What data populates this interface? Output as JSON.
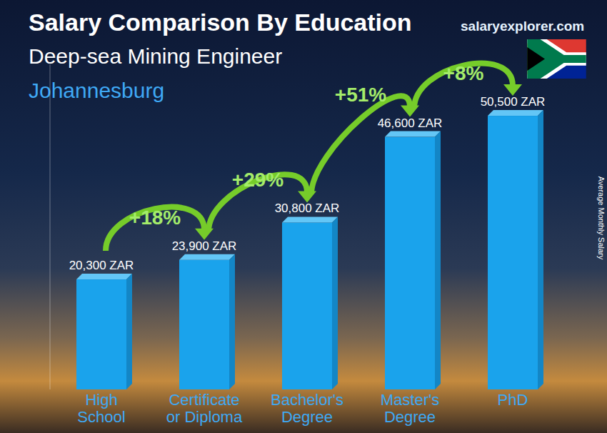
{
  "chart_data": {
    "type": "bar",
    "title": "Salary Comparison By Education",
    "subtitle": "Deep-sea Mining Engineer",
    "location": "Johannesburg",
    "source": "salaryexplorer.com",
    "y_label": "Average Monthly Salary",
    "categories": [
      "High School",
      "Certificate or Diploma",
      "Bachelor's Degree",
      "Master's Degree",
      "PhD"
    ],
    "values": [
      20300,
      23900,
      30800,
      46600,
      50500
    ],
    "value_labels": [
      "20,300 ZAR",
      "23,900 ZAR",
      "30,800 ZAR",
      "46,600 ZAR",
      "50,500 ZAR"
    ],
    "annotations": [
      "+18%",
      "+29%",
      "+51%",
      "+8%"
    ],
    "color": "#1aa3ec",
    "ylim": [
      0,
      60000
    ],
    "tick_labels": "x",
    "data_labels": true,
    "grid": false
  }
}
